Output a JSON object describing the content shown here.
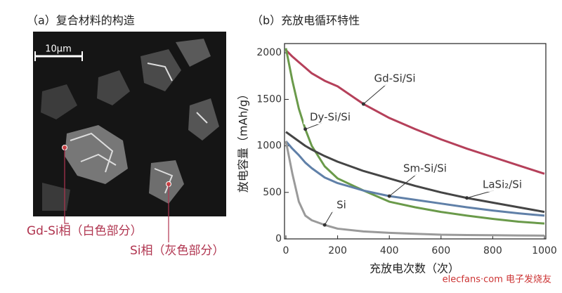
{
  "image_panel": {
    "title": "（a）复合材料的构造",
    "scale_bar": "10μm",
    "labels": [
      "Gd-Si相（白色部分）",
      "Si相（灰色部分）"
    ]
  },
  "watermark": "elecfans·com 电子发烧友",
  "chart_data": {
    "type": "line",
    "title": "（b）充放电循环特性",
    "x_label": "充放电次数（次）",
    "y_label": "放电容量（mAh/g）",
    "x": [
      0,
      25,
      50,
      75,
      100,
      150,
      200,
      300,
      400,
      500,
      600,
      700,
      800,
      900,
      1000
    ],
    "xlim": [
      0,
      1000
    ],
    "ylim": [
      0,
      2100
    ],
    "xticks": [
      0,
      200,
      400,
      600,
      800,
      1000
    ],
    "yticks": [
      0,
      500,
      1000,
      1500,
      2000
    ],
    "series": [
      {
        "name": "Gd-Si/Si",
        "color": "#b5405a",
        "values": [
          2030,
          1960,
          1900,
          1840,
          1780,
          1700,
          1640,
          1450,
          1300,
          1180,
          1070,
          970,
          880,
          790,
          700
        ]
      },
      {
        "name": "Dy-Si/Si",
        "color": "#6a9a4a",
        "values": [
          2050,
          1700,
          1400,
          1180,
          1000,
          780,
          650,
          520,
          400,
          340,
          290,
          250,
          215,
          185,
          165
        ]
      },
      {
        "name": "Sm-Si/Si",
        "color": "#6080a8",
        "values": [
          1050,
          970,
          900,
          820,
          760,
          660,
          600,
          520,
          460,
          420,
          380,
          340,
          305,
          275,
          250
        ]
      },
      {
        "name": "LaSi₂/Si",
        "color": "#454545",
        "values": [
          1150,
          1100,
          1050,
          1000,
          960,
          890,
          830,
          730,
          650,
          570,
          500,
          440,
          390,
          340,
          290
        ]
      },
      {
        "name": "Si",
        "color": "#9a9a9a",
        "values": [
          1050,
          700,
          400,
          250,
          200,
          150,
          110,
          80,
          65,
          55,
          45,
          42,
          40,
          37,
          35
        ]
      }
    ]
  }
}
